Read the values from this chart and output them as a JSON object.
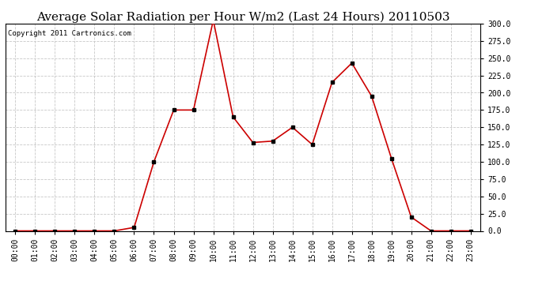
{
  "title": "Average Solar Radiation per Hour W/m2 (Last 24 Hours) 20110503",
  "copyright": "Copyright 2011 Cartronics.com",
  "hours": [
    "00:00",
    "01:00",
    "02:00",
    "03:00",
    "04:00",
    "05:00",
    "06:00",
    "07:00",
    "08:00",
    "09:00",
    "10:00",
    "11:00",
    "12:00",
    "13:00",
    "14:00",
    "15:00",
    "16:00",
    "17:00",
    "18:00",
    "19:00",
    "20:00",
    "21:00",
    "22:00",
    "23:00"
  ],
  "values": [
    0,
    0,
    0,
    0,
    0,
    0,
    5,
    100,
    175,
    175,
    305,
    165,
    128,
    130,
    150,
    125,
    215,
    243,
    195,
    105,
    20,
    0,
    0,
    0
  ],
  "line_color": "#cc0000",
  "marker": "s",
  "marker_size": 3,
  "marker_color": "#000000",
  "background_color": "#ffffff",
  "plot_bg_color": "#ffffff",
  "grid_color": "#c8c8c8",
  "grid_style": "--",
  "ylim": [
    0,
    300
  ],
  "yticks": [
    0.0,
    25.0,
    50.0,
    75.0,
    100.0,
    125.0,
    150.0,
    175.0,
    200.0,
    225.0,
    250.0,
    275.0,
    300.0
  ],
  "title_fontsize": 11,
  "copyright_fontsize": 6.5,
  "tick_fontsize": 7,
  "figsize": [
    6.9,
    3.75
  ],
  "dpi": 100
}
